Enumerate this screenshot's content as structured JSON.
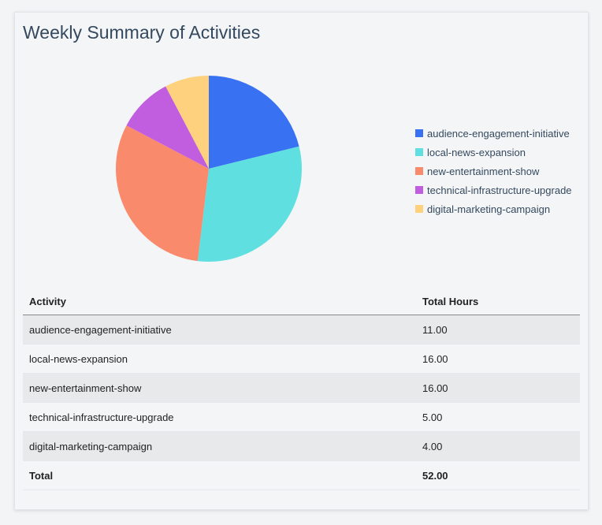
{
  "title": "Weekly Summary of Activities",
  "chart_data": {
    "type": "pie",
    "categories": [
      "audience-engagement-initiative",
      "local-news-expansion",
      "new-entertainment-show",
      "technical-infrastructure-upgrade",
      "digital-marketing-campaign"
    ],
    "values": [
      11,
      16,
      16,
      5,
      4
    ],
    "colors": [
      "#3871f2",
      "#5fdfe0",
      "#f98a6b",
      "#c15ee0",
      "#fdd17e"
    ],
    "legend_position": "right"
  },
  "table": {
    "headers": [
      "Activity",
      "Total Hours"
    ],
    "rows": [
      [
        "audience-engagement-initiative",
        "11.00"
      ],
      [
        "local-news-expansion",
        "16.00"
      ],
      [
        "new-entertainment-show",
        "16.00"
      ],
      [
        "technical-infrastructure-upgrade",
        "5.00"
      ],
      [
        "digital-marketing-campaign",
        "4.00"
      ]
    ],
    "total": [
      "Total",
      "52.00"
    ]
  }
}
